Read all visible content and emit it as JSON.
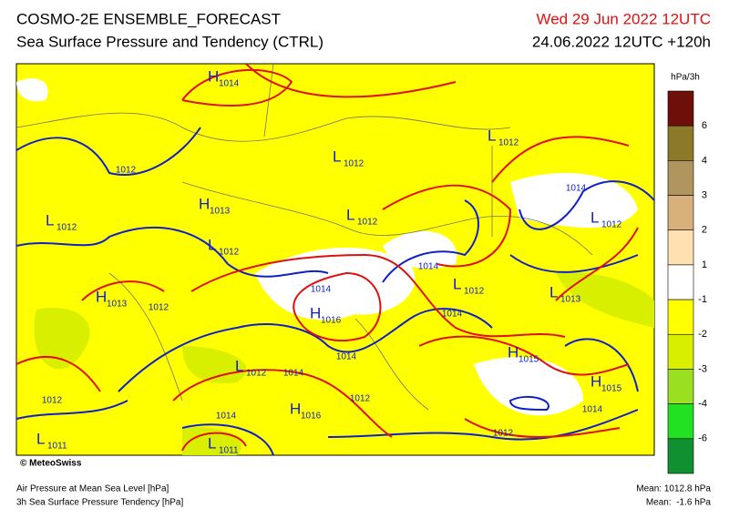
{
  "header": {
    "title": "COSMO-2E ENSEMBLE_FORECAST",
    "subtitle": "Sea Surface Pressure and Tendency (CTRL)",
    "valid_time": "Wed 29 Jun 2022 12UTC",
    "run_time": "24.06.2022 12UTC +120h"
  },
  "map": {
    "credit": "© MeteoSwiss",
    "centers": [
      {
        "letter": "H",
        "value": "1014"
      },
      {
        "letter": "L",
        "value": "1012"
      },
      {
        "letter": "L",
        "value": "1012"
      },
      {
        "letter": "H",
        "value": "1013"
      },
      {
        "letter": "L",
        "value": "1012"
      },
      {
        "letter": "L",
        "value": "1012"
      },
      {
        "letter": "L",
        "value": "1012"
      },
      {
        "letter": "L",
        "value": "1012"
      },
      {
        "letter": "H",
        "value": "1013"
      },
      {
        "letter": "L",
        "value": "1012"
      },
      {
        "letter": "L",
        "value": "1013"
      },
      {
        "letter": "H",
        "value": "1016"
      },
      {
        "letter": "H",
        "value": "1015"
      },
      {
        "letter": "L",
        "value": "1012"
      },
      {
        "letter": "H",
        "value": "1015"
      },
      {
        "letter": "H",
        "value": "1016"
      },
      {
        "letter": "L",
        "value": "1011"
      },
      {
        "letter": "L",
        "value": "1011"
      }
    ],
    "isobar_labels": [
      "1012",
      "1014",
      "1014",
      "1014",
      "1012",
      "1014",
      "1014",
      "1014",
      "1012",
      "1012",
      "1014",
      "1014",
      "1012"
    ]
  },
  "colorbar": {
    "unit": "hPa/3h",
    "labels": [
      "6",
      "4",
      "3",
      "2",
      "1",
      "-1",
      "-2",
      "-3",
      "-4",
      "-6"
    ],
    "colors": [
      "#6e0f0a",
      "#8c7a2a",
      "#b0965e",
      "#d8b07c",
      "#ffe0b0",
      "#ffffff",
      "#ffff00",
      "#d8f000",
      "#9ae020",
      "#22e022",
      "#109030"
    ]
  },
  "footer": {
    "left_line1": "Air Pressure at Mean Sea Level [hPa]",
    "left_line2": "3h Sea Surface Pressure Tendency [hPa]",
    "right_line1": "Mean: 1012.8 hPa",
    "right_line2": "Mean:  -1.6 hPa"
  }
}
